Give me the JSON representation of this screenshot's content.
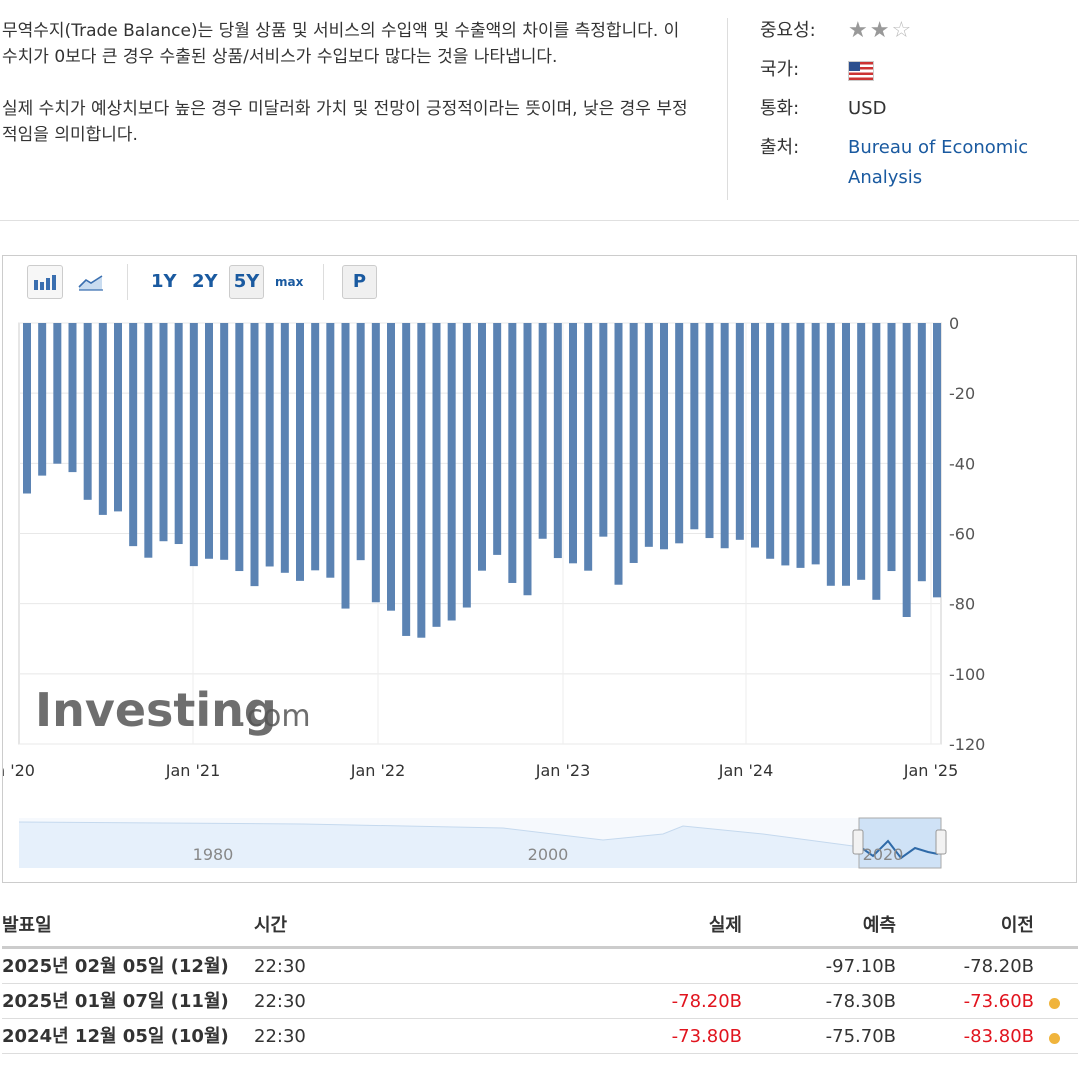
{
  "description": {
    "p1": "무역수지(Trade Balance)는 당월 상품 및 서비스의 수입액 및 수출액의 차이를 측정합니다. 이 수치가 0보다 큰 경우 수출된 상품/서비스가 수입보다 많다는 것을 나타냅니다.",
    "p2": "실제 수치가 예상치보다 높은 경우 미달러화 가치 및 전망이 긍정적이라는 뜻이며, 낮은 경우 부정적임을 의미합니다."
  },
  "info": {
    "importance_label": "중요성:",
    "importance_stars": 2,
    "country_label": "국가:",
    "country_icon": "us-flag-icon",
    "currency_label": "통화:",
    "currency_value": "USD",
    "source_label": "출처:",
    "source_value": "Bureau of Economic Analysis"
  },
  "toolbar": {
    "bar_icon": "bar-chart-icon",
    "line_icon": "area-chart-icon",
    "ranges": [
      "1Y",
      "2Y",
      "5Y",
      "max"
    ],
    "active_range": "5Y",
    "p_label": "P"
  },
  "chart_data": {
    "type": "bar",
    "y_ticks": [
      "0",
      "-20",
      "-40",
      "-60",
      "-80",
      "-100",
      "-120"
    ],
    "ylim": [
      -120,
      0
    ],
    "x_tick_labels": [
      "n '20",
      "Jan '21",
      "Jan '22",
      "Jan '23",
      "Jan '24",
      "Jan '25"
    ],
    "values": [
      -48.6,
      -43.5,
      -40.1,
      -42.5,
      -50.4,
      -54.7,
      -53.7,
      -63.6,
      -66.9,
      -62.2,
      -63.0,
      -69.3,
      -67.2,
      -67.5,
      -70.7,
      -75.0,
      -69.4,
      -71.2,
      -73.5,
      -70.5,
      -72.6,
      -81.4,
      -67.6,
      -79.6,
      -82.0,
      -89.2,
      -89.7,
      -86.6,
      -84.8,
      -81.1,
      -70.6,
      -66.1,
      -74.1,
      -77.6,
      -61.5,
      -67.0,
      -68.5,
      -70.6,
      -60.9,
      -74.6,
      -68.4,
      -63.8,
      -64.5,
      -62.8,
      -58.8,
      -61.3,
      -64.2,
      -61.8,
      -64.0,
      -67.2,
      -69.1,
      -69.8,
      -68.8,
      -74.9,
      -74.9,
      -73.2,
      -78.9,
      -70.7,
      -83.8,
      -73.6,
      -78.2
    ],
    "navigator_labels": [
      "1980",
      "2000",
      "2020"
    ],
    "watermark": "Investing",
    "watermark_suffix": ".com"
  },
  "table": {
    "headers": {
      "date": "발표일",
      "time": "시간",
      "actual": "실제",
      "forecast": "예측",
      "previous": "이전"
    },
    "rows": [
      {
        "date": "2025년 02월 05일 (12월)",
        "time": "22:30",
        "actual": "",
        "forecast": "-97.10B",
        "previous": "-78.20B",
        "actual_color": "",
        "previous_color": ""
      },
      {
        "date": "2025년 01월 07일 (11월)",
        "time": "22:30",
        "actual": "-78.20B",
        "forecast": "-78.30B",
        "previous": "-73.60B",
        "actual_color": "neg",
        "previous_color": "neg"
      },
      {
        "date": "2024년 12월 05일 (10월)",
        "time": "22:30",
        "actual": "-73.80B",
        "forecast": "-75.70B",
        "previous": "-83.80B",
        "actual_color": "neg",
        "previous_color": "neg"
      }
    ]
  }
}
